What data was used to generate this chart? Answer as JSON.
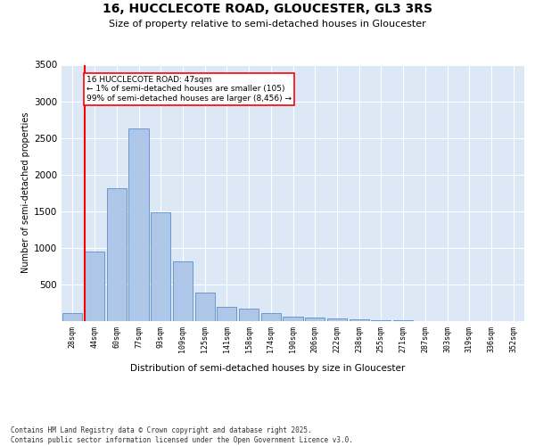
{
  "title": "16, HUCCLECOTE ROAD, GLOUCESTER, GL3 3RS",
  "subtitle": "Size of property relative to semi-detached houses in Gloucester",
  "xlabel": "Distribution of semi-detached houses by size in Gloucester",
  "ylabel": "Number of semi-detached properties",
  "bar_color": "#aec6e8",
  "bar_edge_color": "#5b8fc9",
  "background_color": "#dce8f5",
  "grid_color": "#ffffff",
  "categories": [
    "28sqm",
    "44sqm",
    "60sqm",
    "77sqm",
    "93sqm",
    "109sqm",
    "125sqm",
    "141sqm",
    "158sqm",
    "174sqm",
    "190sqm",
    "206sqm",
    "222sqm",
    "238sqm",
    "255sqm",
    "271sqm",
    "287sqm",
    "303sqm",
    "319sqm",
    "336sqm",
    "352sqm"
  ],
  "values": [
    105,
    950,
    1820,
    2630,
    1480,
    820,
    390,
    200,
    170,
    110,
    65,
    50,
    35,
    20,
    10,
    10,
    5,
    5,
    5,
    5,
    5
  ],
  "annotation_title": "16 HUCCLECOTE ROAD: 47sqm",
  "annotation_line1": "← 1% of semi-detached houses are smaller (105)",
  "annotation_line2": "99% of semi-detached houses are larger (8,456) →",
  "ylim": [
    0,
    3500
  ],
  "yticks": [
    0,
    500,
    1000,
    1500,
    2000,
    2500,
    3000,
    3500
  ],
  "footer1": "Contains HM Land Registry data © Crown copyright and database right 2025.",
  "footer2": "Contains public sector information licensed under the Open Government Licence v3.0."
}
